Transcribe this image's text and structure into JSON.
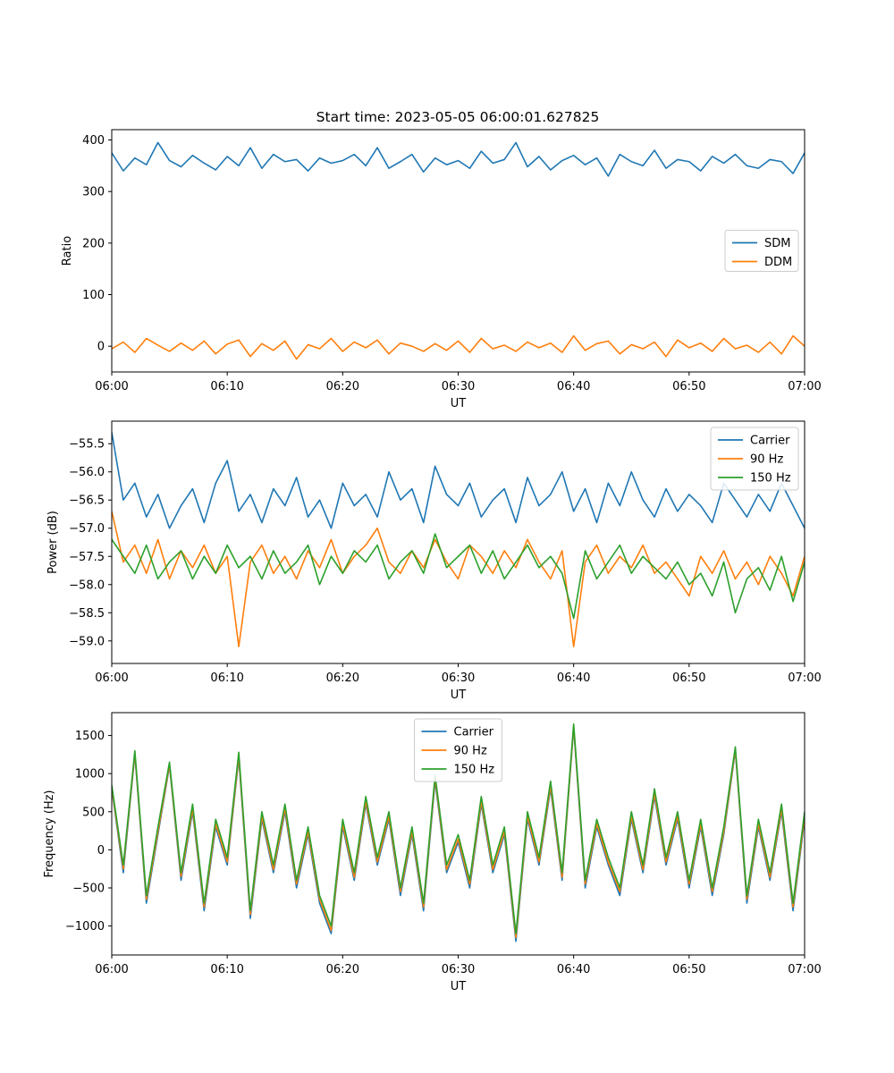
{
  "figure_title": "Start time: 2023-05-05 06:00:01.627825",
  "colors": {
    "series1": "#1f77b4",
    "series2": "#ff7f0e",
    "series3": "#2ca02c"
  },
  "chart_data": [
    {
      "type": "line",
      "ylabel": "Ratio",
      "xlabel": "UT",
      "xlim": [
        0,
        60
      ],
      "ylim": [
        -50,
        420
      ],
      "xticks": [
        0,
        10,
        20,
        30,
        40,
        50,
        60
      ],
      "xtick_labels": [
        "06:00",
        "06:10",
        "06:20",
        "06:30",
        "06:40",
        "06:50",
        "07:00"
      ],
      "yticks": [
        0,
        100,
        200,
        300,
        400
      ],
      "ytick_labels": [
        "0",
        "100",
        "200",
        "300",
        "400"
      ],
      "legend_position": "center-right",
      "x": [
        0,
        1,
        2,
        3,
        4,
        5,
        6,
        7,
        8,
        9,
        10,
        11,
        12,
        13,
        14,
        15,
        16,
        17,
        18,
        19,
        20,
        21,
        22,
        23,
        24,
        25,
        26,
        27,
        28,
        29,
        30,
        31,
        32,
        33,
        34,
        35,
        36,
        37,
        38,
        39,
        40,
        41,
        42,
        43,
        44,
        45,
        46,
        47,
        48,
        49,
        50,
        51,
        52,
        53,
        54,
        55,
        56,
        57,
        58,
        59,
        60
      ],
      "series": [
        {
          "name": "SDM",
          "color": "#1f77b4",
          "values": [
            375,
            340,
            365,
            352,
            395,
            360,
            348,
            370,
            355,
            342,
            368,
            350,
            385,
            345,
            372,
            358,
            362,
            340,
            365,
            355,
            360,
            372,
            350,
            385,
            345,
            358,
            372,
            338,
            365,
            352,
            360,
            345,
            378,
            355,
            362,
            395,
            348,
            368,
            342,
            360,
            370,
            352,
            365,
            330,
            372,
            358,
            350,
            380,
            345,
            362,
            358,
            340,
            368,
            355,
            372,
            350,
            345,
            362,
            358,
            335,
            375
          ]
        },
        {
          "name": "DDM",
          "color": "#ff7f0e",
          "values": [
            -5,
            8,
            -12,
            15,
            2,
            -10,
            6,
            -8,
            10,
            -15,
            4,
            12,
            -20,
            5,
            -8,
            10,
            -25,
            3,
            -5,
            15,
            -10,
            8,
            -3,
            12,
            -15,
            6,
            0,
            -10,
            5,
            -8,
            10,
            -12,
            15,
            -5,
            2,
            -10,
            8,
            -3,
            6,
            -12,
            20,
            -8,
            5,
            10,
            -15,
            3,
            -5,
            8,
            -20,
            12,
            -3,
            6,
            -10,
            15,
            -5,
            2,
            -12,
            8,
            -15,
            20,
            0
          ]
        }
      ]
    },
    {
      "type": "line",
      "ylabel": "Power (dB)",
      "xlabel": "UT",
      "xlim": [
        0,
        60
      ],
      "ylim": [
        -59.4,
        -55.1
      ],
      "xticks": [
        0,
        10,
        20,
        30,
        40,
        50,
        60
      ],
      "xtick_labels": [
        "06:00",
        "06:10",
        "06:20",
        "06:30",
        "06:40",
        "06:50",
        "07:00"
      ],
      "yticks": [
        -59.0,
        -58.5,
        -58.0,
        -57.5,
        -57.0,
        -56.5,
        -56.0,
        -55.5
      ],
      "ytick_labels": [
        "−59.0",
        "−58.5",
        "−58.0",
        "−57.5",
        "−57.0",
        "−56.5",
        "−56.0",
        "−55.5"
      ],
      "legend_position": "upper-right",
      "x": [
        0,
        1,
        2,
        3,
        4,
        5,
        6,
        7,
        8,
        9,
        10,
        11,
        12,
        13,
        14,
        15,
        16,
        17,
        18,
        19,
        20,
        21,
        22,
        23,
        24,
        25,
        26,
        27,
        28,
        29,
        30,
        31,
        32,
        33,
        34,
        35,
        36,
        37,
        38,
        39,
        40,
        41,
        42,
        43,
        44,
        45,
        46,
        47,
        48,
        49,
        50,
        51,
        52,
        53,
        54,
        55,
        56,
        57,
        58,
        59,
        60
      ],
      "series": [
        {
          "name": "Carrier",
          "color": "#1f77b4",
          "values": [
            -55.3,
            -56.5,
            -56.2,
            -56.8,
            -56.4,
            -57.0,
            -56.6,
            -56.3,
            -56.9,
            -56.2,
            -55.8,
            -56.7,
            -56.4,
            -56.9,
            -56.3,
            -56.6,
            -56.1,
            -56.8,
            -56.5,
            -57.0,
            -56.2,
            -56.6,
            -56.4,
            -56.8,
            -56.0,
            -56.5,
            -56.3,
            -56.9,
            -55.9,
            -56.4,
            -56.6,
            -56.2,
            -56.8,
            -56.5,
            -56.3,
            -56.9,
            -56.1,
            -56.6,
            -56.4,
            -56.0,
            -56.7,
            -56.3,
            -56.9,
            -56.2,
            -56.6,
            -56.0,
            -56.5,
            -56.8,
            -56.3,
            -56.7,
            -56.4,
            -56.6,
            -56.9,
            -56.2,
            -56.5,
            -56.8,
            -56.4,
            -56.7,
            -56.2,
            -56.6,
            -57.0
          ]
        },
        {
          "name": "90 Hz",
          "color": "#ff7f0e",
          "values": [
            -56.7,
            -57.6,
            -57.3,
            -57.8,
            -57.2,
            -57.9,
            -57.4,
            -57.7,
            -57.3,
            -57.8,
            -57.5,
            -59.1,
            -57.6,
            -57.3,
            -57.8,
            -57.5,
            -57.9,
            -57.4,
            -57.7,
            -57.2,
            -57.8,
            -57.5,
            -57.3,
            -57.0,
            -57.6,
            -57.8,
            -57.4,
            -57.7,
            -57.2,
            -57.6,
            -57.9,
            -57.3,
            -57.5,
            -57.8,
            -57.4,
            -57.7,
            -57.2,
            -57.6,
            -57.9,
            -57.4,
            -59.1,
            -57.6,
            -57.3,
            -57.8,
            -57.5,
            -57.7,
            -57.3,
            -57.8,
            -57.6,
            -57.9,
            -58.2,
            -57.5,
            -57.8,
            -57.4,
            -57.9,
            -57.6,
            -58.0,
            -57.5,
            -57.8,
            -58.2,
            -57.5
          ]
        },
        {
          "name": "150 Hz",
          "color": "#2ca02c",
          "values": [
            -57.2,
            -57.5,
            -57.8,
            -57.3,
            -57.9,
            -57.6,
            -57.4,
            -57.9,
            -57.5,
            -57.8,
            -57.3,
            -57.7,
            -57.5,
            -57.9,
            -57.4,
            -57.8,
            -57.6,
            -57.3,
            -58.0,
            -57.5,
            -57.8,
            -57.4,
            -57.6,
            -57.3,
            -57.9,
            -57.6,
            -57.4,
            -57.8,
            -57.1,
            -57.7,
            -57.5,
            -57.3,
            -57.8,
            -57.4,
            -57.9,
            -57.6,
            -57.3,
            -57.7,
            -57.5,
            -57.8,
            -58.6,
            -57.4,
            -57.9,
            -57.6,
            -57.3,
            -57.8,
            -57.5,
            -57.7,
            -57.9,
            -57.6,
            -58.0,
            -57.8,
            -58.2,
            -57.6,
            -58.5,
            -57.9,
            -57.7,
            -58.1,
            -57.5,
            -58.3,
            -57.6
          ]
        }
      ]
    },
    {
      "type": "line",
      "ylabel": "Frequency (Hz)",
      "xlabel": "UT",
      "xlim": [
        0,
        60
      ],
      "ylim": [
        -1380,
        1800
      ],
      "xticks": [
        0,
        10,
        20,
        30,
        40,
        50,
        60
      ],
      "xtick_labels": [
        "06:00",
        "06:10",
        "06:20",
        "06:30",
        "06:40",
        "06:50",
        "07:00"
      ],
      "yticks": [
        -1000,
        -500,
        0,
        500,
        1000,
        1500
      ],
      "ytick_labels": [
        "−1000",
        "−500",
        "0",
        "500",
        "1000",
        "1500"
      ],
      "legend_position": "upper-center",
      "x": [
        0,
        1,
        2,
        3,
        4,
        5,
        6,
        7,
        8,
        9,
        10,
        11,
        12,
        13,
        14,
        15,
        16,
        17,
        18,
        19,
        20,
        21,
        22,
        23,
        24,
        25,
        26,
        27,
        28,
        29,
        30,
        31,
        32,
        33,
        34,
        35,
        36,
        37,
        38,
        39,
        40,
        41,
        42,
        43,
        44,
        45,
        46,
        47,
        48,
        49,
        50,
        51,
        52,
        53,
        54,
        55,
        56,
        57,
        58,
        59,
        60
      ],
      "series": [
        {
          "name": "Carrier",
          "color": "#1f77b4",
          "values": [
            800,
            -300,
            1250,
            -700,
            200,
            1100,
            -400,
            500,
            -800,
            300,
            -200,
            1200,
            -900,
            400,
            -300,
            500,
            -500,
            200,
            -700,
            -1100,
            300,
            -400,
            600,
            -200,
            400,
            -600,
            200,
            -800,
            900,
            -300,
            100,
            -500,
            600,
            -300,
            200,
            -1200,
            400,
            -200,
            800,
            -400,
            1600,
            -500,
            300,
            -200,
            -600,
            400,
            -300,
            700,
            -200,
            400,
            -500,
            300,
            -600,
            200,
            1300,
            -700,
            300,
            -400,
            500,
            -800,
            400
          ]
        },
        {
          "name": "90 Hz",
          "color": "#ff7f0e",
          "values": [
            820,
            -250,
            1270,
            -650,
            240,
            1120,
            -350,
            540,
            -750,
            340,
            -160,
            1230,
            -850,
            440,
            -260,
            540,
            -450,
            240,
            -650,
            -1060,
            340,
            -360,
            640,
            -160,
            440,
            -550,
            240,
            -750,
            940,
            -260,
            140,
            -450,
            640,
            -260,
            240,
            -1150,
            440,
            -160,
            840,
            -360,
            1620,
            -450,
            340,
            -160,
            -550,
            440,
            -260,
            740,
            -160,
            440,
            -450,
            340,
            -550,
            240,
            1320,
            -650,
            340,
            -360,
            540,
            -750,
            440
          ]
        },
        {
          "name": "150 Hz",
          "color": "#2ca02c",
          "values": [
            850,
            -200,
            1300,
            -600,
            300,
            1150,
            -300,
            600,
            -700,
            400,
            -100,
            1280,
            -800,
            500,
            -200,
            600,
            -400,
            300,
            -600,
            -1000,
            400,
            -300,
            700,
            -100,
            500,
            -500,
            300,
            -700,
            980,
            -200,
            200,
            -400,
            700,
            -200,
            300,
            -1100,
            500,
            -100,
            900,
            -300,
            1650,
            -400,
            400,
            -100,
            -500,
            500,
            -200,
            800,
            -100,
            500,
            -400,
            400,
            -500,
            300,
            1350,
            -600,
            400,
            -300,
            600,
            -700,
            500
          ]
        }
      ]
    }
  ]
}
